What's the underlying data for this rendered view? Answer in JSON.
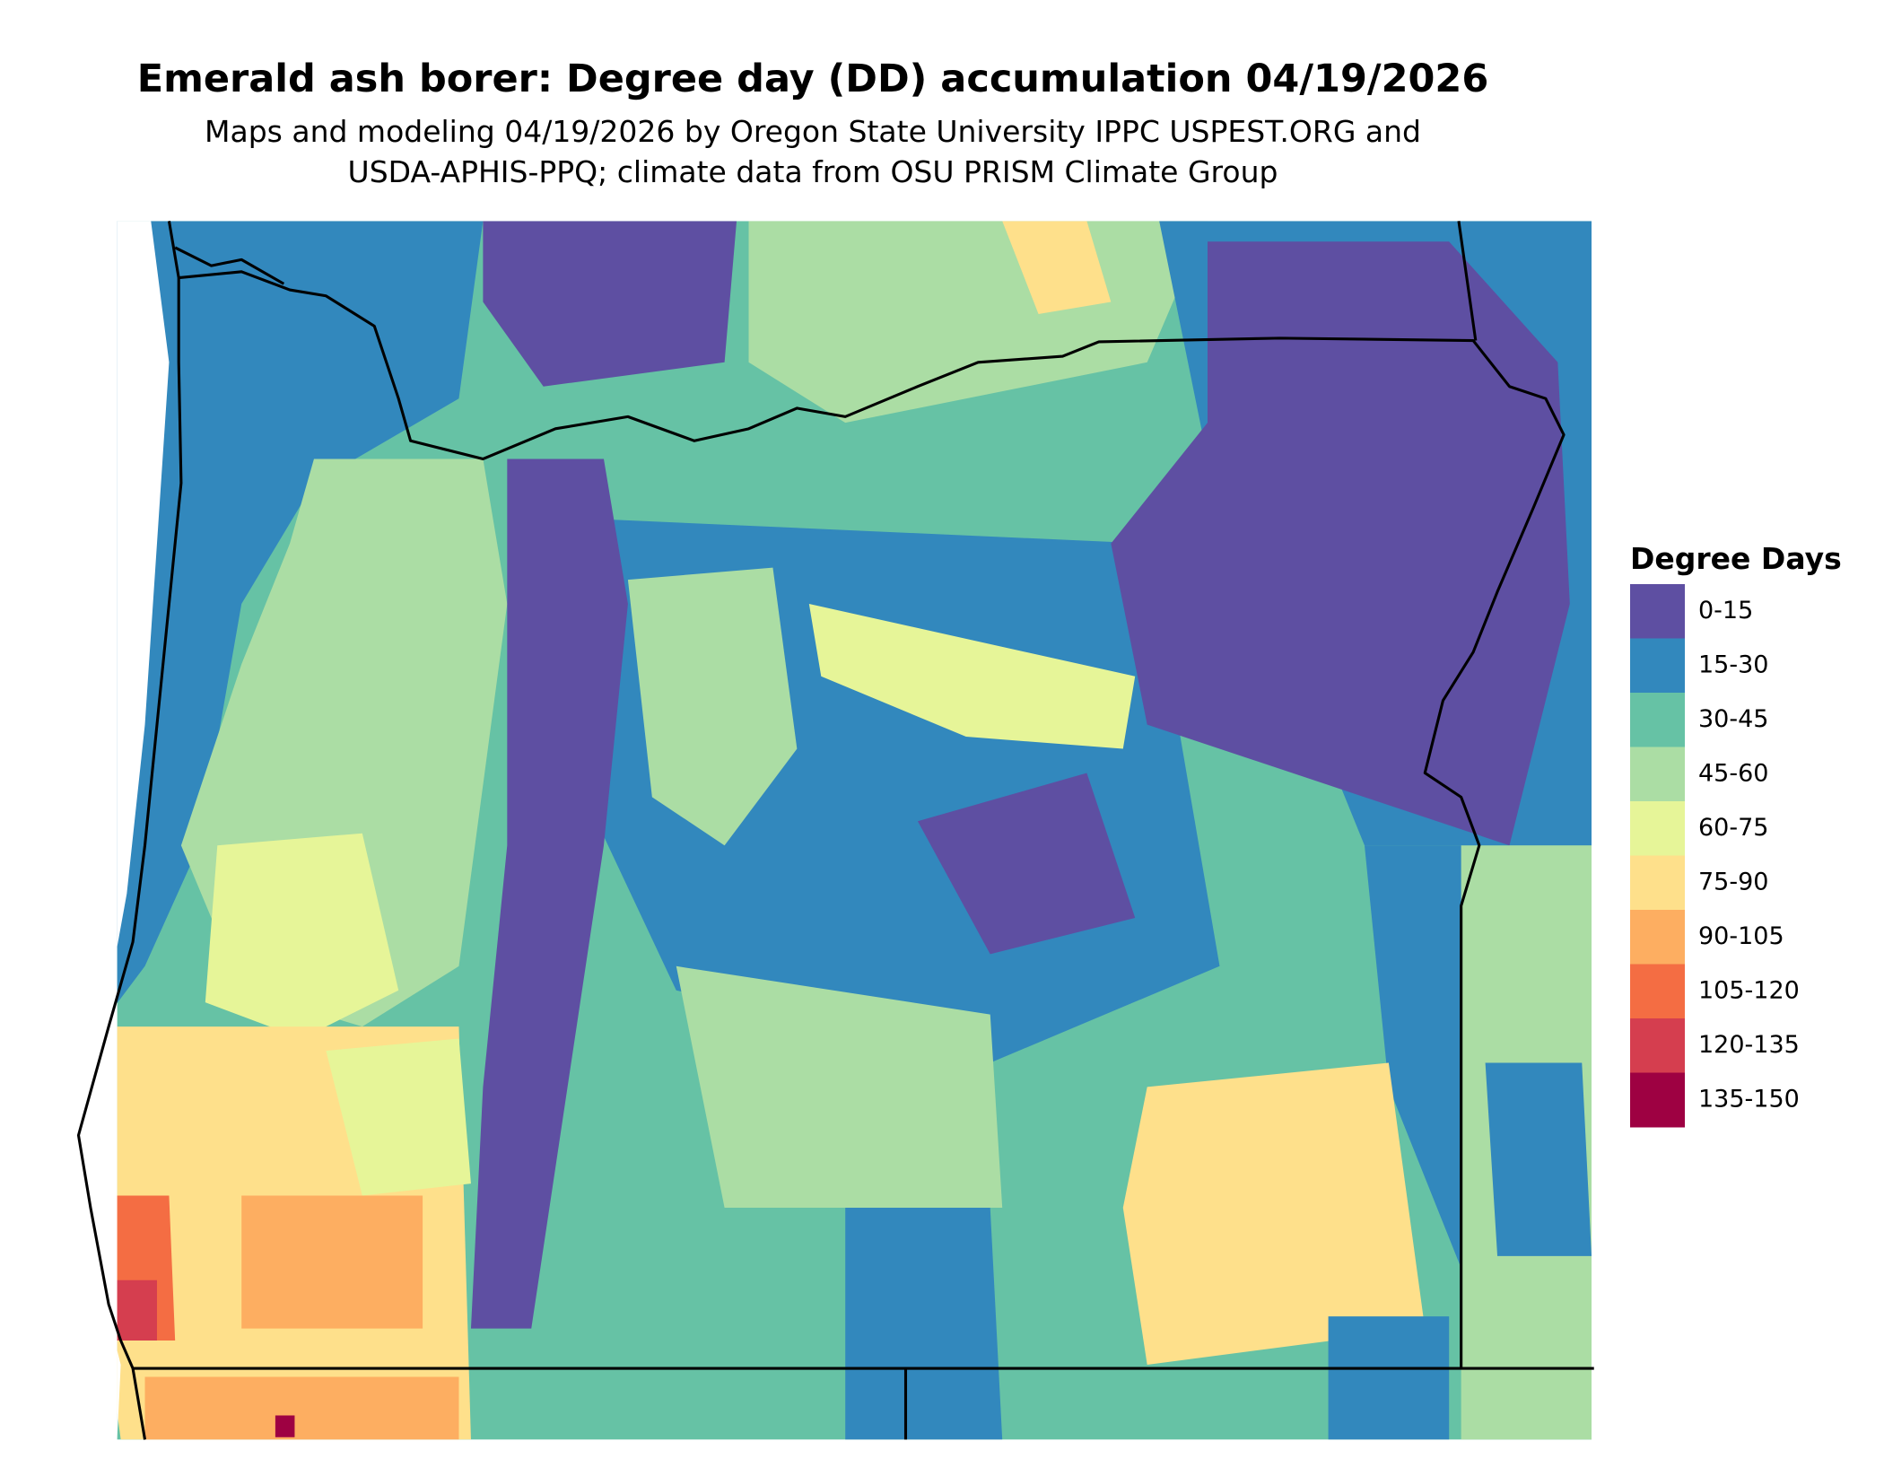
{
  "header": {
    "title": "Emerald ash borer: Degree day (DD) accumulation 04/19/2026",
    "subtitle_lines": [
      "Maps and modeling 04/19/2026 by Oregon State University IPPC USPEST.ORG and",
      "USDA-APHIS-PPQ; climate data from OSU PRISM Climate Group"
    ]
  },
  "legend": {
    "title": "Degree Days",
    "items": [
      {
        "label": "0-15",
        "color": "#5e4fa2"
      },
      {
        "label": "15-30",
        "color": "#3288bd"
      },
      {
        "label": "30-45",
        "color": "#66c2a5"
      },
      {
        "label": "45-60",
        "color": "#abdda4"
      },
      {
        "label": "60-75",
        "color": "#e6f598"
      },
      {
        "label": "75-90",
        "color": "#fee08b"
      },
      {
        "label": "90-105",
        "color": "#fdae61"
      },
      {
        "label": "105-120",
        "color": "#f46d43"
      },
      {
        "label": "120-135",
        "color": "#d53e4f"
      },
      {
        "label": "135-150",
        "color": "#9e0142"
      }
    ]
  }
}
